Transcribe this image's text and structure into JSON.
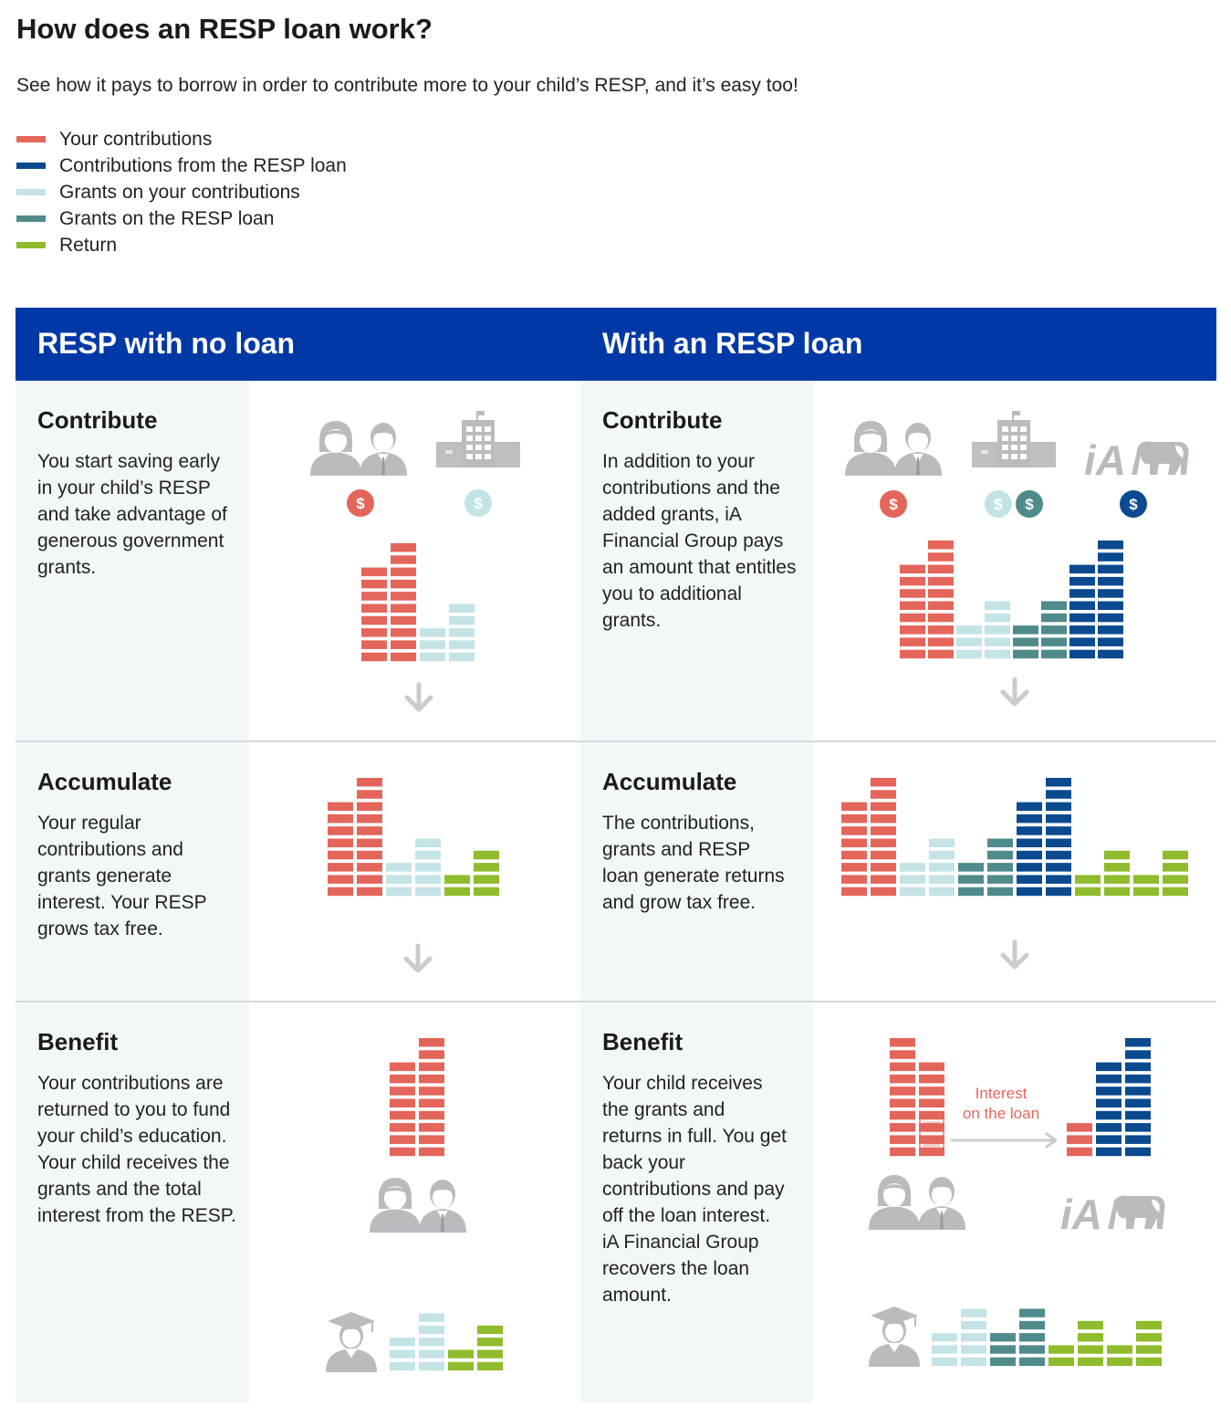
{
  "title": "How does an RESP loan work?",
  "subtitle": "See how it pays to borrow in order to contribute more to your child’s RESP, and it’s easy too!",
  "colors": {
    "contrib": "#e4655a",
    "loan": "#0b4a8f",
    "grant": "#c4e3e6",
    "grant_loan": "#4f8b8a",
    "return": "#8fbc2c",
    "header": "#0039a6",
    "icon_gray": "#b9bcbf"
  },
  "legend": [
    {
      "label": "Your contributions",
      "color": "#e4655a"
    },
    {
      "label": "Contributions from the RESP loan",
      "color": "#0b4a8f"
    },
    {
      "label": "Grants on your contributions",
      "color": "#c4e3e6"
    },
    {
      "label": "Grants on the RESP loan",
      "color": "#4f8b8a"
    },
    {
      "label": "Return",
      "color": "#8fbc2c"
    }
  ],
  "columns": [
    {
      "heading": "RESP with no loan",
      "sections": [
        {
          "title": "Contribute",
          "body": "You start saving early in your child’s RESP and take advantage of generous government grants."
        },
        {
          "title": "Accumulate",
          "body": "Your regular contributions and grants generate interest. Your RESP grows tax free."
        },
        {
          "title": "Benefit",
          "body": "Your contributions are returned to you to fund your child’s education. Your child receives the grants and the total interest from the RESP."
        }
      ]
    },
    {
      "heading": "With an RESP loan",
      "sections": [
        {
          "title": "Contribute",
          "body": "In addition to your contributions and the added grants, iA Financial Group pays an amount that entitles you to additional grants."
        },
        {
          "title": "Accumulate",
          "body": "The contributions, grants and RESP loan generate returns and grow tax free."
        },
        {
          "title": "Benefit",
          "body": "Your child receives the grants and returns in full. You get back your contributions and pay off the loan interest. iA Financial Group recovers the loan amount."
        }
      ]
    }
  ],
  "icons": {
    "parents": "parents-icon",
    "government": "government-building-icon",
    "ia_logo": "iA",
    "dollar": "$",
    "arrow": "arrow-down-icon",
    "graduate": "graduate-icon"
  },
  "interest_note": [
    "Interest",
    "on the loan"
  ],
  "stacks": {
    "no_loan_contribute": [
      {
        "series": "contrib",
        "level": 8
      },
      {
        "series": "contrib",
        "level": 10
      },
      {
        "series": "grant",
        "level": 3
      },
      {
        "series": "grant",
        "level": 5
      }
    ],
    "no_loan_accumulate": [
      {
        "series": "contrib",
        "level": 8
      },
      {
        "series": "contrib",
        "level": 10
      },
      {
        "series": "grant",
        "level": 3
      },
      {
        "series": "grant",
        "level": 5
      },
      {
        "series": "return",
        "level": 2
      },
      {
        "series": "return",
        "level": 4
      }
    ],
    "no_loan_benefit_returned": [
      {
        "series": "contrib",
        "level": 8
      },
      {
        "series": "contrib",
        "level": 10
      }
    ],
    "no_loan_benefit_child": [
      {
        "series": "grant",
        "level": 3
      },
      {
        "series": "grant",
        "level": 5
      },
      {
        "series": "return",
        "level": 2
      },
      {
        "series": "return",
        "level": 4
      }
    ],
    "loan_contribute": [
      {
        "series": "contrib",
        "level": 8
      },
      {
        "series": "contrib",
        "level": 10
      },
      {
        "series": "grant",
        "level": 3
      },
      {
        "series": "grant",
        "level": 5
      },
      {
        "series": "grant_loan",
        "level": 3
      },
      {
        "series": "grant_loan",
        "level": 5
      },
      {
        "series": "loan",
        "level": 8
      },
      {
        "series": "loan",
        "level": 10
      }
    ],
    "loan_accumulate": [
      {
        "series": "contrib",
        "level": 8
      },
      {
        "series": "contrib",
        "level": 10
      },
      {
        "series": "grant",
        "level": 3
      },
      {
        "series": "grant",
        "level": 5
      },
      {
        "series": "grant_loan",
        "level": 3
      },
      {
        "series": "grant_loan",
        "level": 5
      },
      {
        "series": "loan",
        "level": 8
      },
      {
        "series": "loan",
        "level": 10
      },
      {
        "series": "return",
        "level": 2
      },
      {
        "series": "return",
        "level": 4
      },
      {
        "series": "return",
        "level": 2
      },
      {
        "series": "return",
        "level": 4
      }
    ],
    "loan_benefit_contrib": [
      {
        "series": "contrib",
        "level": 10
      },
      {
        "series": "contrib",
        "level": 8
      }
    ],
    "loan_benefit_ia": [
      {
        "series": "contrib",
        "level": 3
      },
      {
        "series": "loan",
        "level": 8
      },
      {
        "series": "loan",
        "level": 10
      }
    ],
    "loan_benefit_child": [
      {
        "series": "grant",
        "level": 3
      },
      {
        "series": "grant",
        "level": 5
      },
      {
        "series": "grant_loan",
        "level": 3
      },
      {
        "series": "grant_loan",
        "level": 5
      },
      {
        "series": "return",
        "level": 2
      },
      {
        "series": "return",
        "level": 4
      },
      {
        "series": "return",
        "level": 2
      },
      {
        "series": "return",
        "level": 4
      }
    ]
  }
}
